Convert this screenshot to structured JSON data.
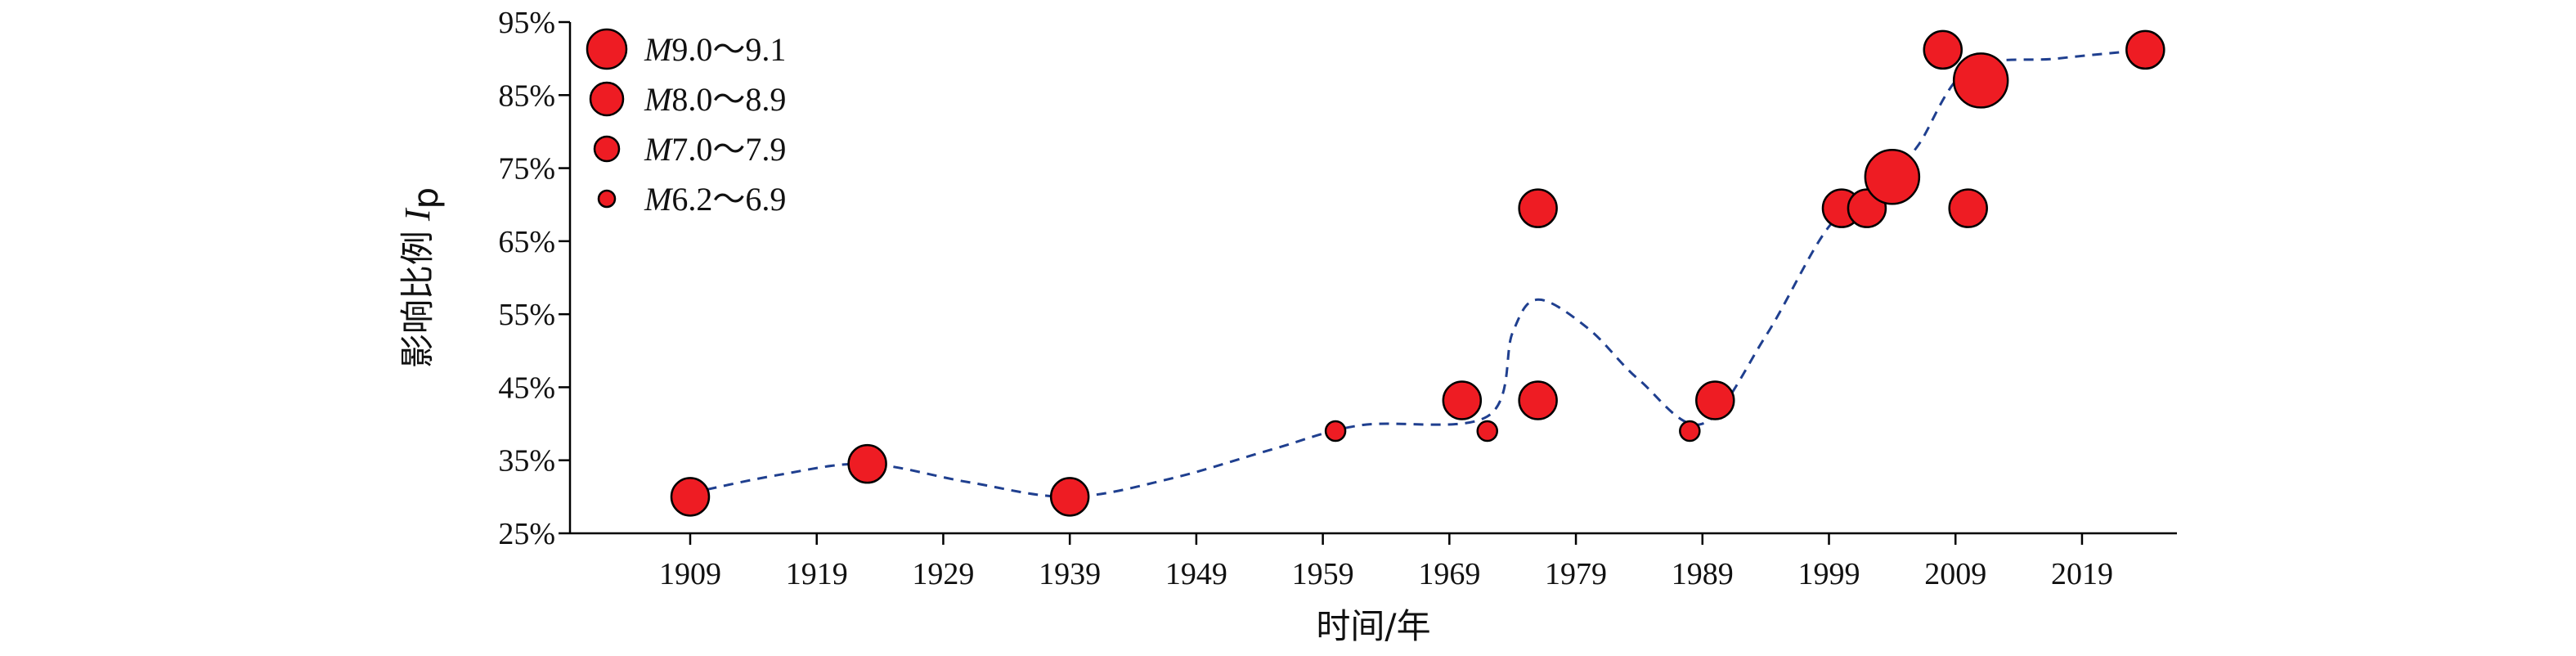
{
  "chart_data": {
    "type": "scatter",
    "x_label": "时间/年",
    "y_label_main": "影响比例",
    "y_label_var": "I",
    "y_label_sub": "p",
    "x_ticks": [
      "1909",
      "1919",
      "1929",
      "1939",
      "1949",
      "1959",
      "1969",
      "1979",
      "1989",
      "1999",
      "2009",
      "2019"
    ],
    "x_range": [
      1899.5,
      2026.5
    ],
    "y_ticks": [
      "25%",
      "35%",
      "45%",
      "55%",
      "65%",
      "75%",
      "85%",
      "95%"
    ],
    "y_range": [
      25,
      95
    ],
    "legend_placement": "top-left",
    "marker_fill": "#ee1c23",
    "marker_stroke": "#000000",
    "trend_color": "#1f3f8f",
    "legend": [
      {
        "magnitude_var": "M",
        "range": "9.0～9.1",
        "size": "xlarge"
      },
      {
        "magnitude_var": "M",
        "range": "8.0～8.9",
        "size": "large"
      },
      {
        "magnitude_var": "M",
        "range": "7.0～7.9",
        "size": "medium"
      },
      {
        "magnitude_var": "M",
        "range": "6.2～6.9",
        "size": "small"
      }
    ],
    "points": [
      {
        "year": 1909,
        "value": 30,
        "size": "large"
      },
      {
        "year": 1923,
        "value": 34.5,
        "size": "large"
      },
      {
        "year": 1939,
        "value": 30,
        "size": "large"
      },
      {
        "year": 1960,
        "value": 39,
        "size": "small"
      },
      {
        "year": 1970,
        "value": 43.2,
        "size": "large"
      },
      {
        "year": 1972,
        "value": 39,
        "size": "small"
      },
      {
        "year": 1976,
        "value": 43.2,
        "size": "large"
      },
      {
        "year": 1976,
        "value": 69.5,
        "size": "large"
      },
      {
        "year": 1988,
        "value": 39,
        "size": "small"
      },
      {
        "year": 1990,
        "value": 43.2,
        "size": "large"
      },
      {
        "year": 2000,
        "value": 69.5,
        "size": "large"
      },
      {
        "year": 2002,
        "value": 69.5,
        "size": "large"
      },
      {
        "year": 2004,
        "value": 73.8,
        "size": "xlarge"
      },
      {
        "year": 2008,
        "value": 91.2,
        "size": "large"
      },
      {
        "year": 2010,
        "value": 69.5,
        "size": "large"
      },
      {
        "year": 2011,
        "value": 87,
        "size": "xlarge"
      },
      {
        "year": 2024,
        "value": 91.2,
        "size": "large"
      }
    ],
    "trend_line": [
      {
        "year": 1909,
        "value": 30.5
      },
      {
        "year": 1916,
        "value": 33
      },
      {
        "year": 1923,
        "value": 34.5
      },
      {
        "year": 1931,
        "value": 32
      },
      {
        "year": 1939,
        "value": 30
      },
      {
        "year": 1947,
        "value": 32.5
      },
      {
        "year": 1955,
        "value": 36.5
      },
      {
        "year": 1962,
        "value": 39.8
      },
      {
        "year": 1972,
        "value": 41
      },
      {
        "year": 1974,
        "value": 52.5
      },
      {
        "year": 1976,
        "value": 57
      },
      {
        "year": 1980,
        "value": 53
      },
      {
        "year": 1984,
        "value": 46
      },
      {
        "year": 1989,
        "value": 40
      },
      {
        "year": 1994,
        "value": 52
      },
      {
        "year": 1999,
        "value": 67
      },
      {
        "year": 2003,
        "value": 72
      },
      {
        "year": 2006,
        "value": 78
      },
      {
        "year": 2010,
        "value": 88.5
      },
      {
        "year": 2017,
        "value": 90
      },
      {
        "year": 2024,
        "value": 91.2
      }
    ]
  }
}
